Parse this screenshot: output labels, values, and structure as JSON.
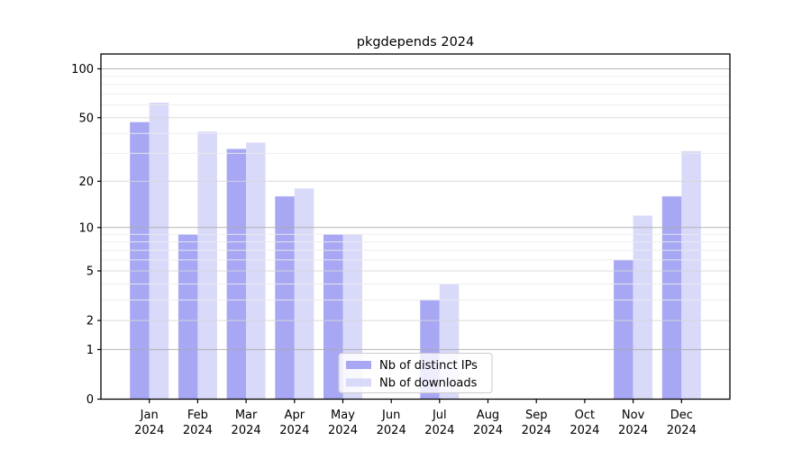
{
  "figure": {
    "background": "#ffffff",
    "frame_color": "#000000"
  },
  "chart_data": {
    "type": "bar",
    "title": "pkgdepends 2024",
    "categories": [
      "Jan",
      "Feb",
      "Mar",
      "Apr",
      "May",
      "Jun",
      "Jul",
      "Aug",
      "Sep",
      "Oct",
      "Nov",
      "Dec"
    ],
    "category_year": "2024",
    "series": [
      {
        "name": "Nb of distinct IPs",
        "color": "#a7a7f4",
        "values": [
          47,
          9,
          32,
          16,
          9,
          0,
          3,
          0,
          0,
          0,
          6,
          16
        ]
      },
      {
        "name": "Nb of downloads",
        "color": "#d9d9fa",
        "values": [
          62,
          41,
          35,
          18,
          9,
          0,
          4,
          0,
          0,
          0,
          12,
          31
        ]
      }
    ],
    "xlabel": "",
    "ylabel": "",
    "yscale": "symlog-log1p",
    "ylim": [
      0,
      123
    ],
    "yticks": [
      0,
      1,
      2,
      5,
      10,
      20,
      50,
      100
    ],
    "grid": true,
    "gridlines": {
      "strong": [
        1,
        10,
        100
      ],
      "medium": [
        2,
        5,
        20,
        50
      ],
      "faint": [
        3,
        4,
        6,
        7,
        8,
        9,
        30,
        40,
        60,
        70,
        80,
        90
      ]
    },
    "grid_colors": {
      "strong": "#acacac",
      "medium": "#d8d8d8",
      "faint": "#ececec"
    },
    "legend_position": "lower center",
    "legend_border_color": "#cccccc",
    "legend_background": "rgba(255,255,255,0.8)"
  }
}
